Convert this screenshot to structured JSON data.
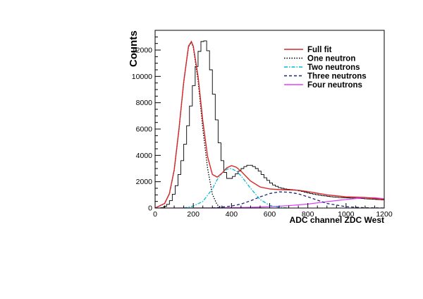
{
  "chart_data": {
    "type": "line",
    "title": "",
    "xlabel": "ADC channel ZDC West",
    "ylabel": "Counts",
    "xlim": [
      0,
      1200
    ],
    "ylim": [
      0,
      13500
    ],
    "xticks": [
      "0",
      "200",
      "400",
      "600",
      "800",
      "1000",
      "1200"
    ],
    "yticks": [
      "0",
      "2000",
      "4000",
      "6000",
      "8000",
      "10000",
      "12000"
    ],
    "xtick_values": [
      0,
      200,
      400,
      600,
      800,
      1000,
      1200
    ],
    "ytick_values": [
      0,
      2000,
      4000,
      6000,
      8000,
      10000,
      12000
    ],
    "grid": false,
    "legend_position": "top-right",
    "histogram": {
      "bin_width": 15,
      "color": "#000000",
      "x_start": 0,
      "values": [
        0,
        0,
        30,
        120,
        280,
        560,
        1050,
        1700,
        2550,
        3600,
        4850,
        6250,
        7750,
        9300,
        10750,
        11900,
        12650,
        12700,
        11950,
        10500,
        8650,
        6700,
        4950,
        3600,
        2700,
        2250,
        2250,
        2400,
        2600,
        2800,
        3000,
        3150,
        3250,
        3250,
        3150,
        3000,
        2800,
        2550,
        2300,
        2100,
        1900,
        1750,
        1650,
        1550,
        1500,
        1450,
        1420,
        1400,
        1380,
        1350,
        1300,
        1260,
        1200,
        1150,
        1100,
        1060,
        1020,
        980,
        950,
        920,
        890,
        860,
        840,
        820,
        800,
        790,
        780,
        770,
        760,
        750,
        740,
        730,
        720,
        700,
        690,
        680,
        660,
        650,
        640,
        620
      ]
    },
    "series": [
      {
        "name": "Full fit",
        "color": "#d62728",
        "dash": "solid",
        "x": [
          0,
          50,
          75,
          100,
          125,
          150,
          175,
          190,
          200,
          225,
          250,
          275,
          300,
          325,
          350,
          375,
          400,
          425,
          450,
          500,
          550,
          600,
          650,
          700,
          750,
          800,
          900,
          1000,
          1100,
          1200
        ],
        "y": [
          0,
          350,
          1100,
          2900,
          6000,
          9600,
          12300,
          12650,
          12300,
          10000,
          6600,
          3900,
          2550,
          2350,
          2650,
          3050,
          3220,
          3100,
          2800,
          2050,
          1600,
          1450,
          1400,
          1380,
          1350,
          1250,
          1000,
          850,
          800,
          650
        ]
      },
      {
        "name": "One neutron",
        "color": "#000000",
        "dash": "dotted",
        "x": [
          0,
          50,
          75,
          100,
          125,
          150,
          175,
          190,
          200,
          225,
          250,
          275,
          300,
          325,
          350
        ],
        "y": [
          0,
          340,
          1080,
          2850,
          5950,
          9550,
          12250,
          12600,
          12200,
          9700,
          6000,
          3000,
          1050,
          250,
          0
        ]
      },
      {
        "name": "Two neutrons",
        "color": "#00bcd4",
        "dash": "dashdot",
        "x": [
          150,
          200,
          250,
          300,
          325,
          350,
          375,
          400,
          425,
          450,
          500,
          550,
          600,
          650,
          700
        ],
        "y": [
          0,
          150,
          500,
          1450,
          2150,
          2650,
          2950,
          3000,
          2800,
          2450,
          1500,
          650,
          200,
          50,
          0
        ]
      },
      {
        "name": "Three neutrons",
        "color": "#1a237e",
        "dash": "dashed",
        "x": [
          300,
          400,
          450,
          500,
          550,
          600,
          650,
          700,
          750,
          800,
          850,
          900,
          1000,
          1100,
          1200
        ],
        "y": [
          0,
          150,
          300,
          550,
          850,
          1100,
          1230,
          1200,
          1080,
          850,
          600,
          350,
          100,
          20,
          0
        ]
      },
      {
        "name": "Four neutrons",
        "color": "#e040fb",
        "dash": "solid",
        "x": [
          0,
          100,
          200,
          300,
          400,
          500,
          600,
          700,
          800,
          900,
          1000,
          1050,
          1100,
          1150,
          1200
        ],
        "y": [
          0,
          2,
          5,
          10,
          25,
          50,
          100,
          180,
          300,
          480,
          650,
          720,
          780,
          780,
          700
        ]
      }
    ]
  }
}
